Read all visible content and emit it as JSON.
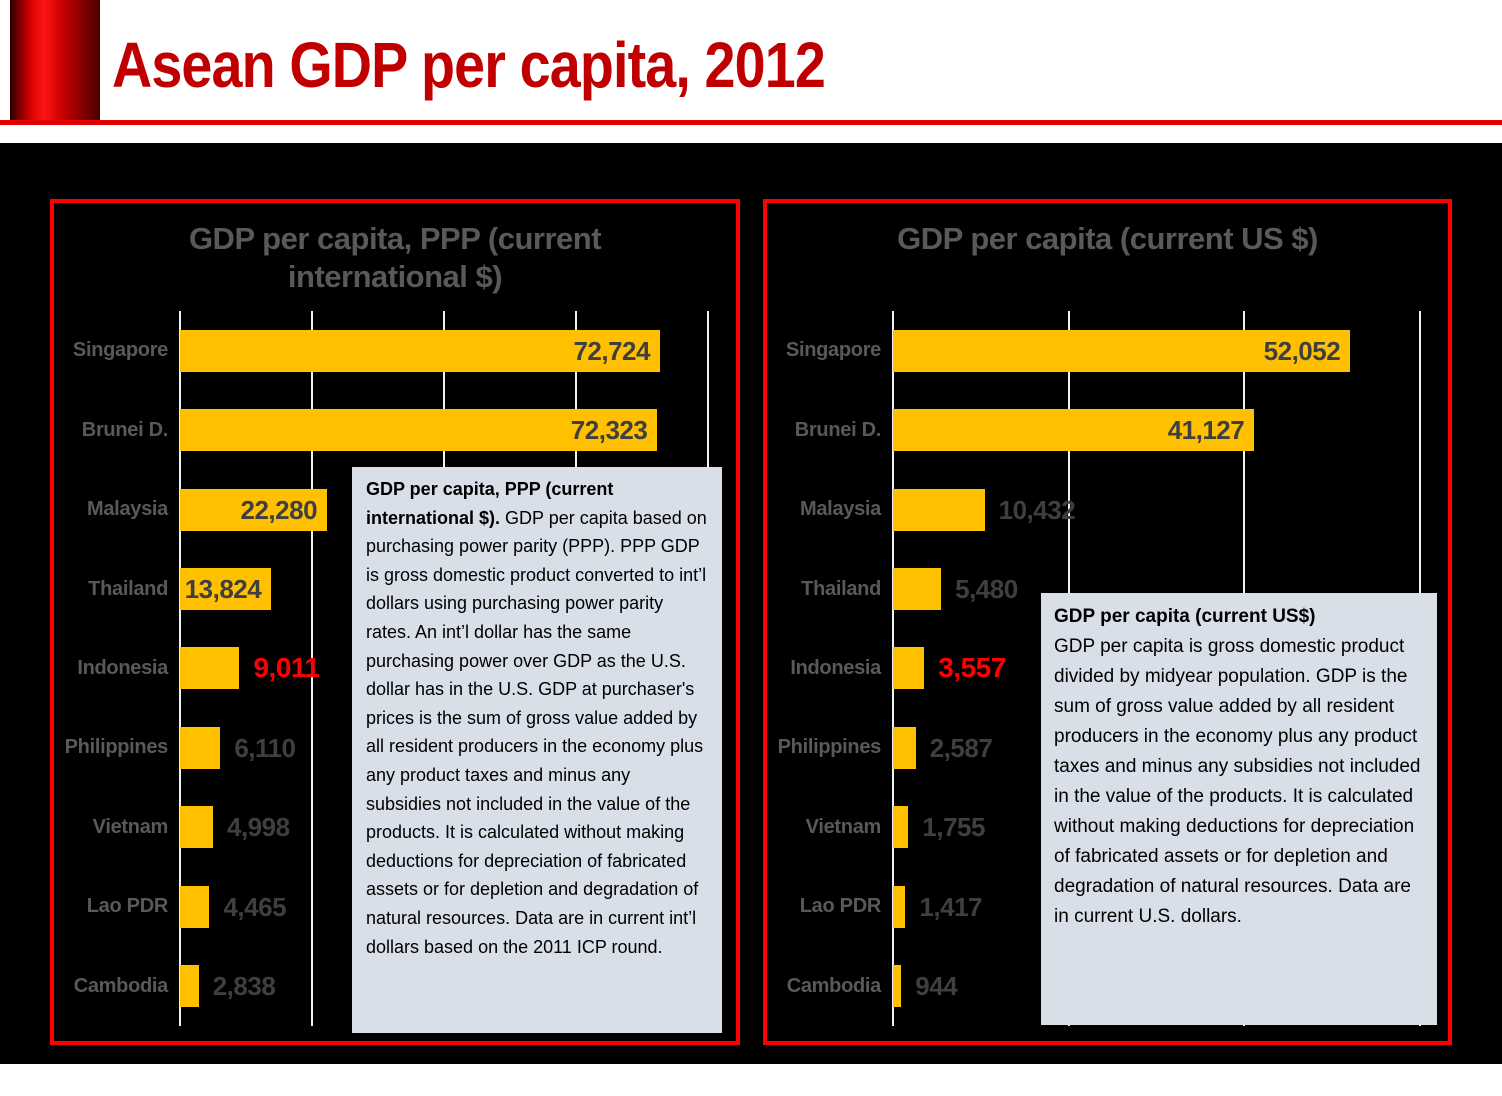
{
  "page": {
    "title": "Asean GDP per capita, 2012"
  },
  "colors": {
    "slide_title_red": "#c00000",
    "panel_border_red": "#ff0000",
    "bar_gold": "#ffc000",
    "label_gray": "#595959",
    "value_gray": "#3f3f3f",
    "highlight_red": "#ff0000",
    "note_background": "#d9dfe8",
    "stage_black": "#000000"
  },
  "chart_data": [
    {
      "type": "bar",
      "orientation": "horizontal",
      "title": "GDP per capita, PPP (current international $)",
      "title_lines": [
        "GDP per capita, PPP (current",
        "international $)"
      ],
      "categories": [
        "Singapore",
        "Brunei D.",
        "Malaysia",
        "Thailand",
        "Indonesia",
        "Philippines",
        "Vietnam",
        "Lao PDR",
        "Cambodia"
      ],
      "values": [
        72724,
        72323,
        22280,
        13824,
        9011,
        6110,
        4998,
        4465,
        2838
      ],
      "value_labels": [
        "72,724",
        "72,323",
        "22,280",
        "13,824",
        "9,011",
        "6,110",
        "4,998",
        "4,465",
        "2,838"
      ],
      "label_inside": [
        true,
        true,
        true,
        true,
        false,
        false,
        false,
        false,
        false
      ],
      "highlight_index": 4,
      "highlight_category": "Indonesia",
      "xlim": [
        0,
        80000
      ],
      "grid_interval": 20000,
      "grid": true,
      "legend": "none",
      "note_heading": "GDP per capita, PPP (current international $).",
      "note_body": " GDP per capita based on purchasing power parity (PPP). PPP GDP is gross domestic product converted to int’l dollars using purchasing power parity rates. An int’l dollar has the same purchasing power over GDP as the U.S. dollar has in the U.S. GDP at purchaser's prices is the sum of gross value added by all resident producers in the economy plus any product taxes and minus any subsidies not included in the value of the products. It is calculated without making deductions for depreciation of fabricated assets or for depletion and degradation of natural resources. Data are in current int’l dollars based on the 2011 ICP round."
    },
    {
      "type": "bar",
      "orientation": "horizontal",
      "title": "GDP per capita (current US $)",
      "title_lines": [
        "GDP per capita (current US $)"
      ],
      "categories": [
        "Singapore",
        "Brunei D.",
        "Malaysia",
        "Thailand",
        "Indonesia",
        "Philippines",
        "Vietnam",
        "Lao PDR",
        "Cambodia"
      ],
      "values": [
        52052,
        41127,
        10432,
        5480,
        3557,
        2587,
        1755,
        1417,
        944
      ],
      "value_labels": [
        "52,052",
        "41,127",
        "10,432",
        "5,480",
        "3,557",
        "2,587",
        "1,755",
        "1,417",
        "944"
      ],
      "label_inside": [
        true,
        true,
        false,
        false,
        false,
        false,
        false,
        false,
        false
      ],
      "highlight_index": 4,
      "highlight_category": "Indonesia",
      "xlim": [
        0,
        60000
      ],
      "grid_interval": 20000,
      "grid": true,
      "legend": "none",
      "note_heading": "GDP per capita (current US$)",
      "note_body": "GDP per capita is gross domestic product divided by midyear population. GDP is the sum of gross value added by all resident producers in the economy plus any product taxes and minus any subsidies not included in the value of the products. It is calculated without making deductions for depreciation of fabricated assets or for depletion and degradation of natural resources. Data are in current U.S. dollars."
    }
  ]
}
